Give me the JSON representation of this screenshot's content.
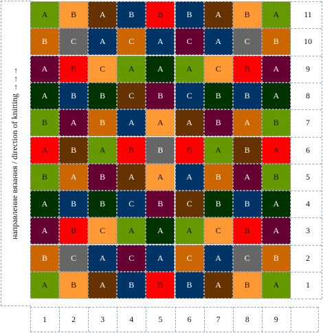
{
  "colors": {
    "A": [
      "#669900",
      "#003366",
      "#663300",
      "#660033",
      "#003300",
      "#ff0000"
    ],
    "B": "#ff9900",
    "C": "#666666"
  },
  "direction_label": "направление вязания / direction of knitting →→→",
  "row_numbers": [
    "11",
    "10",
    "9",
    "8",
    "7",
    "6",
    "5",
    "4",
    "3",
    "2",
    "1"
  ],
  "col_numbers": [
    "1",
    "2",
    "3",
    "4",
    "5",
    "6",
    "7",
    "8",
    "9"
  ],
  "rows": [
    [
      [
        "A",
        "#669900"
      ],
      [
        "B",
        "#ff9933"
      ],
      [
        "A",
        "#663300"
      ],
      [
        "B",
        "#003366"
      ],
      [
        "B",
        "#ff0000"
      ],
      [
        "B",
        "#003366"
      ],
      [
        "A",
        "#663300"
      ],
      [
        "B",
        "#ff9933"
      ],
      [
        "A",
        "#669900"
      ]
    ],
    [
      [
        "B",
        "#cc6600"
      ],
      [
        "C",
        "#666666"
      ],
      [
        "A",
        "#003366"
      ],
      [
        "C",
        "#cc6600"
      ],
      [
        "A",
        "#003366"
      ],
      [
        "C",
        "#660033"
      ],
      [
        "A",
        "#003366"
      ],
      [
        "C",
        "#666666"
      ],
      [
        "B",
        "#cc6600"
      ]
    ],
    [
      [
        "A",
        "#660033"
      ],
      [
        "B",
        "#ff0000"
      ],
      [
        "C",
        "#ff9933"
      ],
      [
        "A",
        "#669900"
      ],
      [
        "A",
        "#003300"
      ],
      [
        "A",
        "#669900"
      ],
      [
        "C",
        "#ff9933"
      ],
      [
        "B",
        "#ff0000"
      ],
      [
        "A",
        "#660033"
      ]
    ],
    [
      [
        "A",
        "#003300"
      ],
      [
        "B",
        "#003366"
      ],
      [
        "B",
        "#003300"
      ],
      [
        "C",
        "#663300"
      ],
      [
        "B",
        "#660033"
      ],
      [
        "C",
        "#003366"
      ],
      [
        "B",
        "#003300"
      ],
      [
        "B",
        "#003366"
      ],
      [
        "A",
        "#003300"
      ]
    ],
    [
      [
        "B",
        "#669900"
      ],
      [
        "A",
        "#660033"
      ],
      [
        "B",
        "#cc6600"
      ],
      [
        "A",
        "#003366"
      ],
      [
        "A",
        "#ff9933"
      ],
      [
        "A",
        "#663300"
      ],
      [
        "B",
        "#660033"
      ],
      [
        "A",
        "#cc6600"
      ],
      [
        "B",
        "#669900"
      ]
    ],
    [
      [
        "A",
        "#ff0000"
      ],
      [
        "B",
        "#663300"
      ],
      [
        "A",
        "#669900"
      ],
      [
        "B",
        "#ff0000"
      ],
      [
        "B",
        "#666666"
      ],
      [
        "B",
        "#ff0000"
      ],
      [
        "A",
        "#669900"
      ],
      [
        "B",
        "#663300"
      ],
      [
        "A",
        "#ff0000"
      ]
    ],
    [
      [
        "B",
        "#669900"
      ],
      [
        "A",
        "#cc6600"
      ],
      [
        "B",
        "#660033"
      ],
      [
        "A",
        "#663300"
      ],
      [
        "A",
        "#ff9933"
      ],
      [
        "A",
        "#003366"
      ],
      [
        "B",
        "#cc6600"
      ],
      [
        "A",
        "#660033"
      ],
      [
        "B",
        "#669900"
      ]
    ],
    [
      [
        "A",
        "#003300"
      ],
      [
        "B",
        "#003366"
      ],
      [
        "B",
        "#003300"
      ],
      [
        "C",
        "#003366"
      ],
      [
        "B",
        "#660033"
      ],
      [
        "C",
        "#663300"
      ],
      [
        "B",
        "#003300"
      ],
      [
        "B",
        "#003366"
      ],
      [
        "A",
        "#003300"
      ]
    ],
    [
      [
        "A",
        "#660033"
      ],
      [
        "B",
        "#ff0000"
      ],
      [
        "C",
        "#ff9933"
      ],
      [
        "A",
        "#669900"
      ],
      [
        "A",
        "#003300"
      ],
      [
        "A",
        "#669900"
      ],
      [
        "C",
        "#ff9933"
      ],
      [
        "B",
        "#ff0000"
      ],
      [
        "A",
        "#660033"
      ]
    ],
    [
      [
        "B",
        "#cc6600"
      ],
      [
        "C",
        "#666666"
      ],
      [
        "A",
        "#003366"
      ],
      [
        "C",
        "#660033"
      ],
      [
        "A",
        "#003366"
      ],
      [
        "C",
        "#cc6600"
      ],
      [
        "A",
        "#003366"
      ],
      [
        "C",
        "#666666"
      ],
      [
        "B",
        "#cc6600"
      ]
    ],
    [
      [
        "A",
        "#669900"
      ],
      [
        "B",
        "#ff9933"
      ],
      [
        "A",
        "#663300"
      ],
      [
        "B",
        "#003366"
      ],
      [
        "B",
        "#ff0000"
      ],
      [
        "B",
        "#003366"
      ],
      [
        "A",
        "#663300"
      ],
      [
        "B",
        "#ff9933"
      ],
      [
        "A",
        "#669900"
      ]
    ]
  ]
}
